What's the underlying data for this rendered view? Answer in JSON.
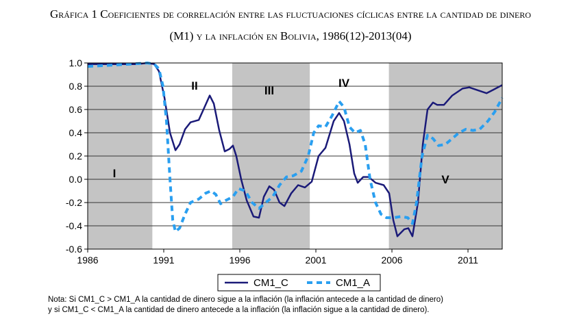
{
  "chart_data": {
    "type": "line",
    "title": [
      "Gráfica 1 Coeficientes  de correlación entre las fluctuaciones cíclicas entre la cantidad de dinero",
      "(M1) y la inflación en Bolivia, 1986(12)-2013(04)"
    ],
    "xlim": [
      1986,
      2013.25
    ],
    "xticks": [
      1986,
      1991,
      1996,
      2001,
      2006,
      2011
    ],
    "ylim": [
      -0.6,
      1.0
    ],
    "yticks": [
      {
        "value": 1,
        "label": "1.0"
      },
      0.8,
      0.6,
      0.4,
      0.2,
      {
        "value": 0,
        "label": "0.0"
      },
      -0.2,
      -0.4,
      -0.6
    ],
    "grid": true,
    "shaded_periods": [
      [
        1986,
        1990.25
      ],
      [
        1995.5,
        2000.6
      ],
      [
        2005.8,
        2013.25
      ]
    ],
    "annotations": [
      "I",
      "II",
      "III",
      "IV",
      "V"
    ],
    "series": [
      {
        "name": "CM1_C",
        "color": "#1a1a78",
        "dash": false,
        "x": [
          1986,
          1989.24,
          1989.92,
          1990.37,
          1990.68,
          1991.05,
          1991.41,
          1991.77,
          1992.04,
          1992.4,
          1992.76,
          1993.3,
          1993.61,
          1994.02,
          1994.29,
          1994.65,
          1995.01,
          1995.32,
          1995.55,
          1995.77,
          1996.09,
          1996.45,
          1996.9,
          1997.26,
          1997.58,
          1997.94,
          1998.25,
          1998.61,
          1998.93,
          1999.38,
          1999.83,
          2000.28,
          2000.73,
          2001.18,
          2001.63,
          2002.17,
          2002.53,
          2002.85,
          2003.21,
          2003.52,
          2003.75,
          2004.11,
          2004.47,
          2004.92,
          2005.46,
          2005.82,
          2006.09,
          2006.36,
          2006.81,
          2007.08,
          2007.35,
          2007.71,
          2008.03,
          2008.34,
          2008.7,
          2008.97,
          2009.42,
          2009.96,
          2010.64,
          2011.09,
          2011.77,
          2012.22,
          2012.67,
          2013.25
        ],
        "values": [
          0.99,
          0.99,
          1.0,
          0.99,
          0.93,
          0.7,
          0.4,
          0.25,
          0.3,
          0.43,
          0.49,
          0.51,
          0.6,
          0.72,
          0.65,
          0.42,
          0.24,
          0.26,
          0.29,
          0.2,
          0.0,
          -0.18,
          -0.32,
          -0.33,
          -0.15,
          -0.06,
          -0.09,
          -0.2,
          -0.23,
          -0.12,
          -0.05,
          -0.07,
          -0.02,
          0.2,
          0.27,
          0.5,
          0.57,
          0.5,
          0.3,
          0.05,
          -0.03,
          0.02,
          0.02,
          -0.03,
          -0.05,
          -0.12,
          -0.35,
          -0.49,
          -0.43,
          -0.42,
          -0.49,
          -0.2,
          0.3,
          0.6,
          0.66,
          0.64,
          0.64,
          0.72,
          0.78,
          0.79,
          0.76,
          0.74,
          0.77,
          0.81
        ]
      },
      {
        "name": "CM1_A",
        "color": "#2a9ff0",
        "dash": true,
        "x": [
          1986,
          1987.44,
          1988.79,
          1989.92,
          1990.37,
          1990.68,
          1990.95,
          1991.18,
          1991.41,
          1991.59,
          1991.77,
          1992.04,
          1992.4,
          1992.76,
          1993.3,
          1993.75,
          1994.11,
          1994.42,
          1994.74,
          1995.1,
          1995.55,
          1995.91,
          1996.36,
          1996.81,
          1997.26,
          1997.71,
          1998.16,
          1998.61,
          1999.06,
          1999.51,
          2000.05,
          2000.5,
          2000.86,
          2001.18,
          2001.63,
          2002.08,
          2002.53,
          2002.85,
          2003.21,
          2003.57,
          2003.93,
          2004.24,
          2004.56,
          2004.92,
          2005.28,
          2005.64,
          2006.14,
          2006.59,
          2007.04,
          2007.35,
          2007.62,
          2007.98,
          2008.34,
          2008.7,
          2009.06,
          2009.51,
          2009.96,
          2010.41,
          2010.86,
          2011.32,
          2011.77,
          2012.31,
          2012.76,
          2013.25
        ],
        "values": [
          0.97,
          0.98,
          0.99,
          1.0,
          0.99,
          0.95,
          0.8,
          0.5,
          0.0,
          -0.35,
          -0.45,
          -0.42,
          -0.3,
          -0.2,
          -0.17,
          -0.12,
          -0.1,
          -0.13,
          -0.21,
          -0.18,
          -0.15,
          -0.08,
          -0.1,
          -0.2,
          -0.25,
          -0.2,
          -0.15,
          -0.05,
          0.02,
          0.03,
          0.07,
          0.2,
          0.4,
          0.46,
          0.45,
          0.55,
          0.67,
          0.62,
          0.45,
          0.4,
          0.42,
          0.3,
          0.0,
          -0.2,
          -0.3,
          -0.33,
          -0.33,
          -0.32,
          -0.33,
          -0.38,
          -0.2,
          0.2,
          0.38,
          0.35,
          0.29,
          0.3,
          0.35,
          0.4,
          0.43,
          0.42,
          0.43,
          0.5,
          0.58,
          0.7
        ]
      }
    ],
    "note": [
      "Nota: Si CM1_C > CM1_A  la cantidad de dinero sigue a la inflación (la inflación antecede a la cantidad de dinero)",
      "y si CM1_C < CM1_A la cantidad de dinero antecede a la inflación (la inflación sigue a la cantidad de dinero)."
    ]
  }
}
